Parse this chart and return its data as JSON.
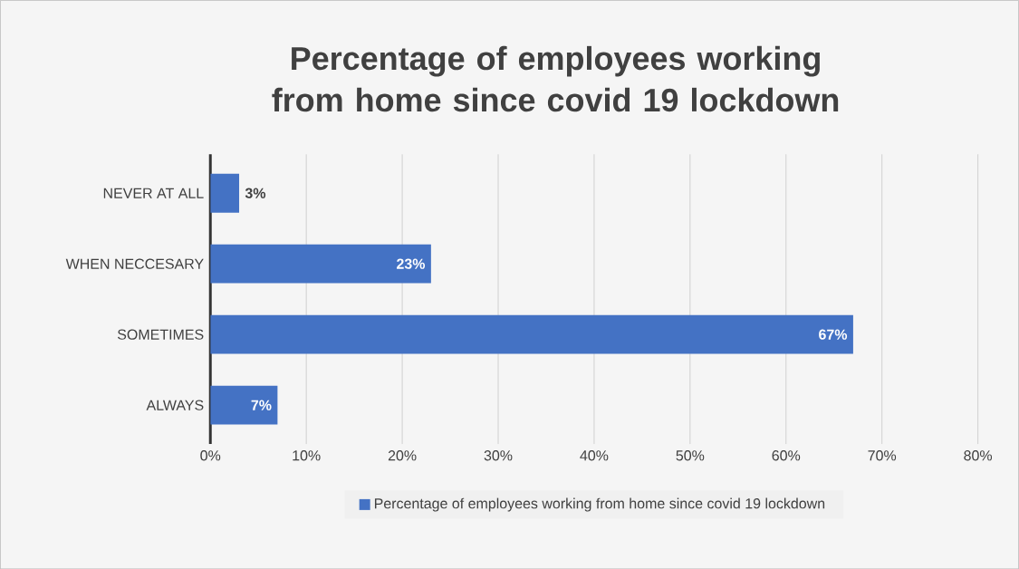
{
  "chart_data": {
    "type": "bar",
    "orientation": "horizontal",
    "title": "Percentage of employees working from home since covid 19 lockdown",
    "categories": [
      "NEVER AT ALL",
      "WHEN NECCESARY",
      "SOMETIMES",
      "ALWAYS"
    ],
    "series": [
      {
        "name": "Percentage of employees working from home since covid 19 lockdown",
        "color": "#4472c4",
        "values": [
          3,
          23,
          67,
          7
        ],
        "value_labels": [
          "3%",
          "23%",
          "67%",
          "7%"
        ]
      }
    ],
    "xlim": [
      0,
      80
    ],
    "xticks": [
      {
        "value": 0,
        "label": "0%"
      },
      {
        "value": 10,
        "label": "10%"
      },
      {
        "value": 20,
        "label": "20%"
      },
      {
        "value": 30,
        "label": "30%"
      },
      {
        "value": 40,
        "label": "40%"
      },
      {
        "value": 50,
        "label": "50%"
      },
      {
        "value": 60,
        "label": "60%"
      },
      {
        "value": 70,
        "label": "70%"
      },
      {
        "value": 80,
        "label": "80%"
      }
    ],
    "grid": "x",
    "legend": "bottom"
  }
}
